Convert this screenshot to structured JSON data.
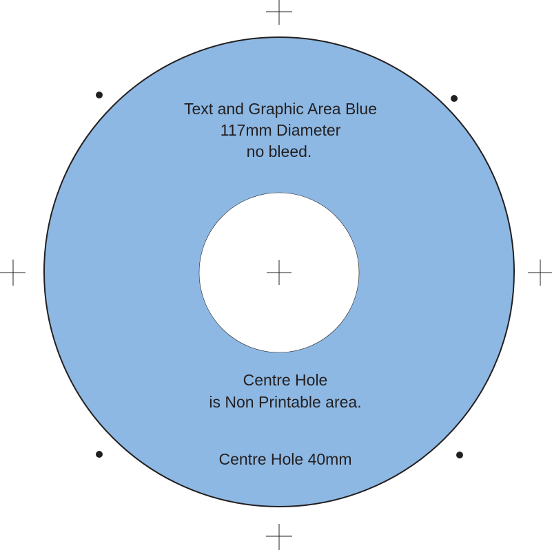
{
  "colors": {
    "print_area": "#8db8e3",
    "outline": "#231f20",
    "centre_hole": "#ffffff",
    "marks": "#231f20"
  },
  "print_area": {
    "line1": "Text and Graphic Area Blue",
    "line2": "117mm Diameter",
    "line3": "no bleed."
  },
  "centre_hole": {
    "line1": "Centre Hole",
    "line2": "is Non Printable area.",
    "size_label": "Centre Hole 40mm"
  }
}
